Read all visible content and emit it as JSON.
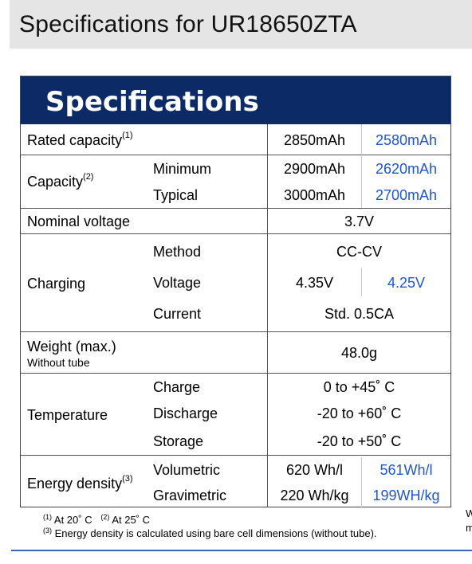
{
  "page_title": "Specifications for UR18650ZTA",
  "table_title": "Specifications",
  "rows": {
    "rated_capacity": {
      "label": "Rated capacity",
      "sup": "(1)",
      "v1": "2850mAh",
      "v2": "2580mAh"
    },
    "capacity": {
      "label": "Capacity",
      "sup": "(2)",
      "min_label": "Minimum",
      "min_v1": "2900mAh",
      "min_v2": "2620mAh",
      "typ_label": "Typical",
      "typ_v1": "3000mAh",
      "typ_v2": "2700mAh"
    },
    "nominal_voltage": {
      "label": "Nominal voltage",
      "value": "3.7V"
    },
    "charging": {
      "label": "Charging",
      "method_label": "Method",
      "method_value": "CC-CV",
      "voltage_label": "Voltage",
      "voltage_v1": "4.35V",
      "voltage_v2": "4.25V",
      "current_label": "Current",
      "current_value": "Std. 0.5CA"
    },
    "weight": {
      "label": "Weight (max.)",
      "sublabel": "Without  tube",
      "value": "48.0g"
    },
    "temperature": {
      "label": "Temperature",
      "charge_label": "Charge",
      "charge_value": "0 to +45˚ C",
      "discharge_label": "Discharge",
      "discharge_value": "-20 to +60˚ C",
      "storage_label": "Storage",
      "storage_value": "-20 to +50˚ C"
    },
    "energy_density": {
      "label": "Energy density",
      "sup": "(3)",
      "vol_label": "Volumetric",
      "vol_v1": "620 Wh/l",
      "vol_v2": "561Wh/l",
      "grav_label": "Gravimetric",
      "grav_v1": "220 Wh/kg",
      "grav_v2": "199WH/kg"
    }
  },
  "footnotes": {
    "f1_mark": "(1)",
    "f1_text": " At 20˚ C",
    "f2_mark": "(2)",
    "f2_text": " At 25˚ C",
    "f3_mark": "(3)",
    "f3_text": " Energy density is calculated using bare cell dimensions (without tube)."
  },
  "edge_fragments": [
    "W",
    "m"
  ]
}
